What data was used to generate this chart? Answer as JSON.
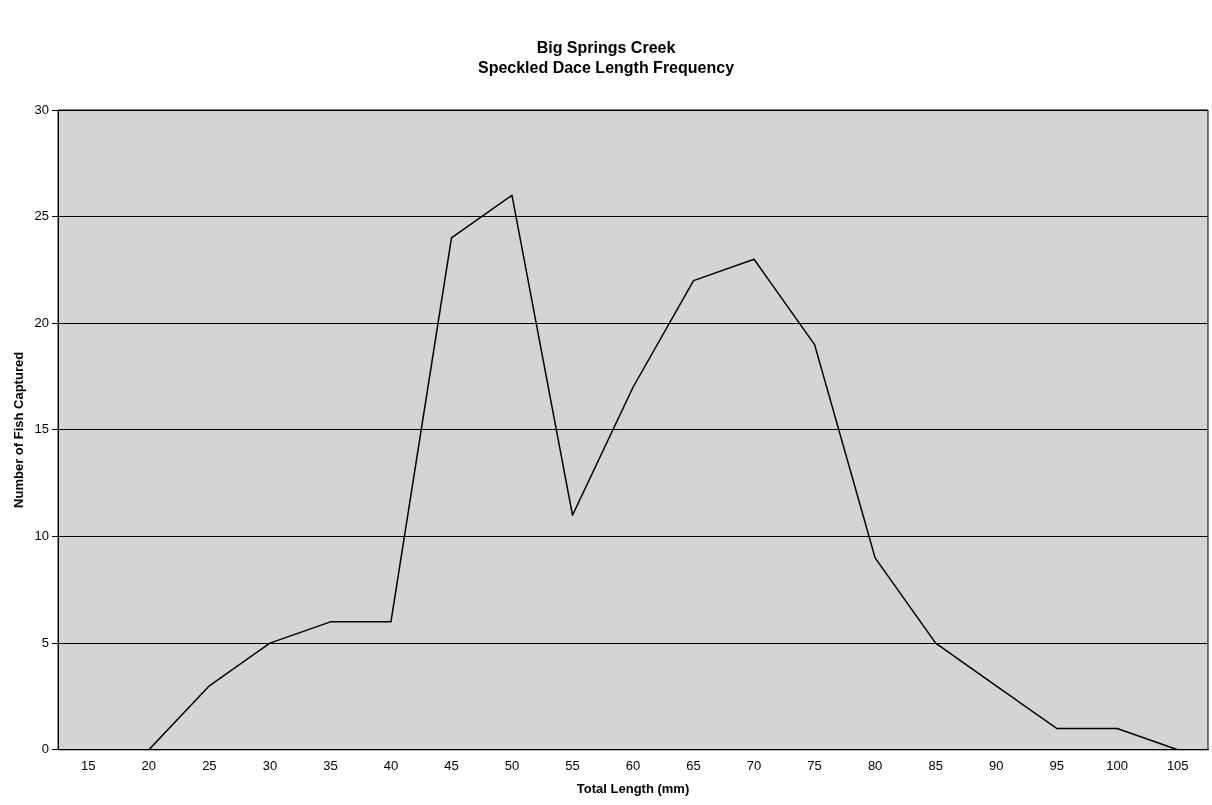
{
  "chart_data": {
    "type": "line",
    "title": "Big Springs Creek",
    "subtitle": "Speckled Dace Length Frequency",
    "xlabel": "Total Length (mm)",
    "ylabel": "Number of Fish Captured",
    "categories": [
      "15",
      "20",
      "25",
      "30",
      "35",
      "40",
      "45",
      "50",
      "55",
      "60",
      "65",
      "70",
      "75",
      "80",
      "85",
      "90",
      "95",
      "100",
      "105"
    ],
    "series": [
      {
        "color": "#000000",
        "values": [
          null,
          0,
          3,
          5,
          6,
          6,
          24,
          26,
          11,
          17,
          22,
          23,
          19,
          9,
          5,
          3,
          1,
          1,
          0
        ]
      }
    ],
    "ylim": [
      0,
      30
    ],
    "yticks": [
      0,
      5,
      10,
      15,
      20,
      25,
      30
    ],
    "grid": "y",
    "legend": false,
    "marker": "none",
    "line_style": "solid"
  }
}
